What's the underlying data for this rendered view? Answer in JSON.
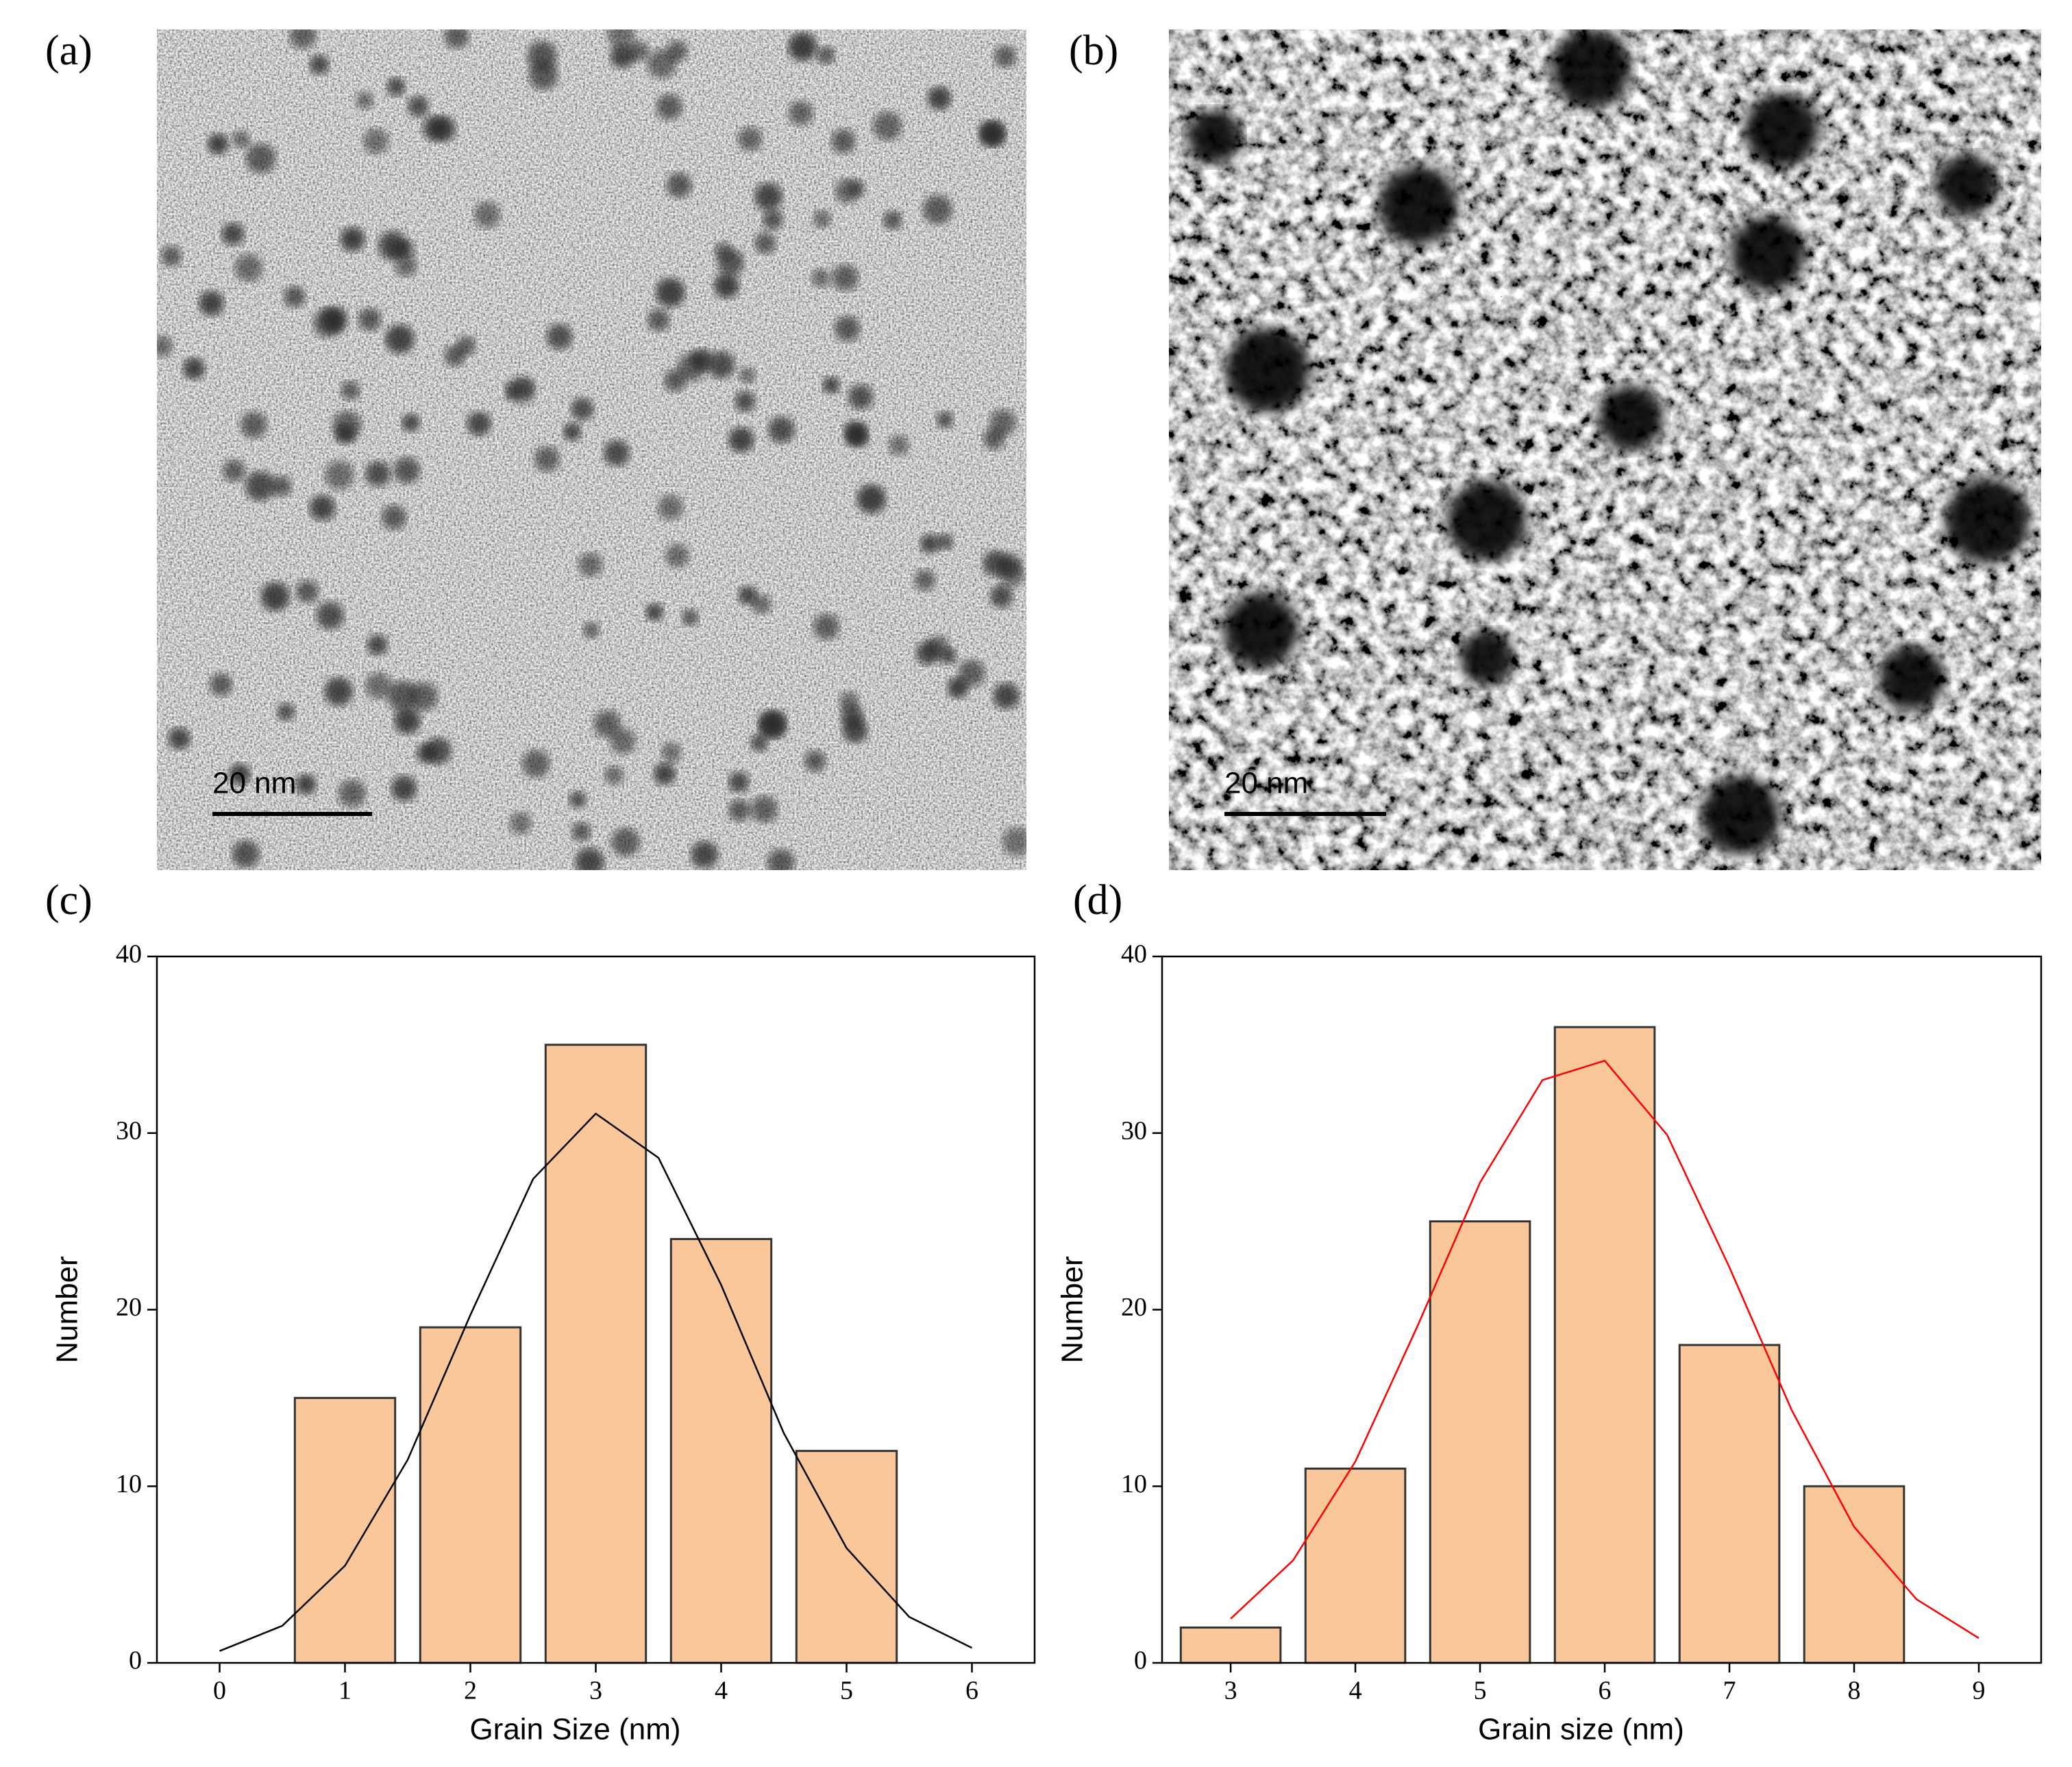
{
  "images": [
    {
      "label": "(a)",
      "scale_bar": "20 nm"
    },
    {
      "label": "(b)",
      "scale_bar": "20 nm"
    }
  ],
  "chart_data": [
    {
      "type": "bar",
      "panel_label": "(c)",
      "x_label": "Grain Size (nm)",
      "y_label": "Number",
      "x": [
        1,
        2,
        3,
        4,
        5
      ],
      "values": [
        15,
        19,
        35,
        24,
        12
      ],
      "color": "#f9c79a",
      "xlim": [
        -0.5,
        6.5
      ],
      "xticks": [
        0,
        1,
        2,
        3,
        4,
        5,
        6
      ],
      "ylim": [
        0,
        40
      ],
      "yticks": [
        0,
        10,
        20,
        30,
        40
      ],
      "fit": {
        "x": [
          0,
          0.5,
          1,
          1.5,
          2,
          2.5,
          3,
          3.5,
          4,
          4.5,
          5,
          5.5,
          6
        ],
        "values": [
          0.67,
          2.1,
          5.5,
          11.5,
          19.7,
          27.4,
          31.1,
          28.6,
          21.4,
          13.0,
          6.5,
          2.6,
          0.85
        ],
        "color": "#000000"
      }
    },
    {
      "type": "bar",
      "panel_label": "(d)",
      "x_label": "Grain size (nm)",
      "y_label": "Number",
      "x": [
        3,
        4,
        5,
        6,
        7,
        8
      ],
      "values": [
        2,
        11,
        25,
        36,
        18,
        10
      ],
      "color": "#f9c79a",
      "xlim": [
        2.45,
        9.5
      ],
      "xticks": [
        3,
        4,
        5,
        6,
        7,
        8,
        9
      ],
      "ylim": [
        0,
        40
      ],
      "yticks": [
        0,
        10,
        20,
        30,
        40
      ],
      "fit": {
        "x": [
          3,
          3.5,
          4,
          4.5,
          5,
          5.5,
          6,
          6.5,
          7,
          7.5,
          8,
          8.5,
          9
        ],
        "values": [
          2.5,
          5.8,
          11.4,
          19.1,
          27.2,
          33.0,
          34.1,
          29.9,
          22.4,
          14.3,
          7.7,
          3.6,
          1.4
        ],
        "color": "#ff0000"
      }
    }
  ]
}
